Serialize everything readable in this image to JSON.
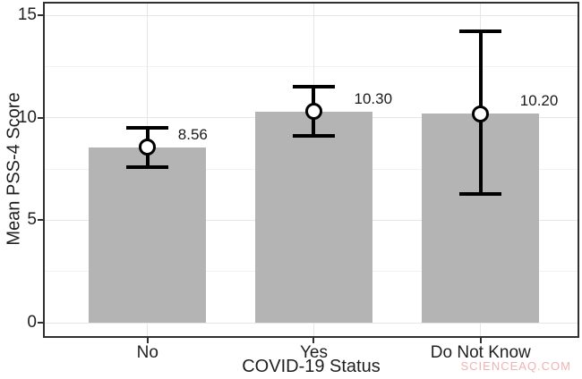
{
  "chart_data": {
    "type": "bar",
    "title": "",
    "categories": [
      "No",
      "Yes",
      "Do Not Know"
    ],
    "values": [
      8.56,
      10.3,
      10.2
    ],
    "value_labels": [
      "8.56",
      "10.30",
      "10.20"
    ],
    "error_bars": [
      {
        "low": 7.6,
        "high": 9.5
      },
      {
        "low": 9.1,
        "high": 11.5
      },
      {
        "low": 6.3,
        "high": 14.2
      }
    ],
    "xlabel": "COVID-19 Status",
    "ylabel": "Mean PSS-4 Score",
    "ylim": [
      0,
      15
    ],
    "yticks": [
      0,
      5,
      10,
      15
    ],
    "yticks_minor": [
      2.5,
      7.5,
      12.5
    ],
    "grid": "major horizontal+vertical, minor horizontal; light gray on white",
    "legend_position": "none",
    "bar_color": "#b4b4b4",
    "error_bar_color": "#000000",
    "marker_style": "open circle, white fill, black stroke"
  },
  "watermark": {
    "text": "SCIENCEAQ.COM",
    "color": "#f0b2b2"
  }
}
